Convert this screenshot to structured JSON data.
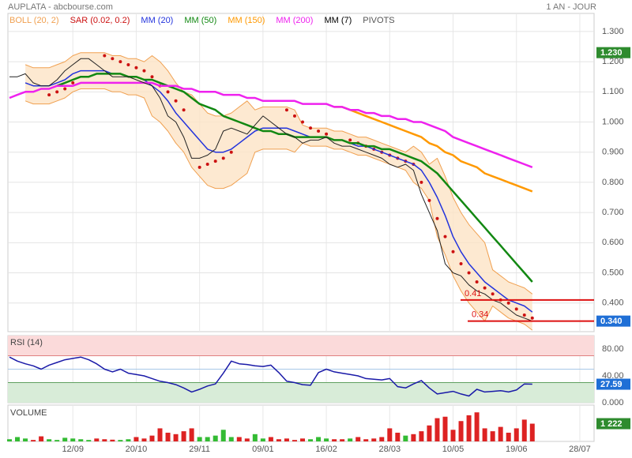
{
  "title": "AUPLATA - abcbourse.com",
  "period": "1 AN - JOUR",
  "chart_data": [
    {
      "type": "line",
      "categories": [
        null,
        null,
        null,
        null,
        null,
        null,
        null,
        null,
        "12/09",
        null,
        null,
        null,
        null,
        null,
        null,
        null,
        "20/10",
        null,
        null,
        null,
        null,
        null,
        null,
        null,
        "29/11",
        null,
        null,
        null,
        null,
        null,
        null,
        null,
        "09/01",
        null,
        null,
        null,
        null,
        null,
        null,
        null,
        "16/02",
        null,
        null,
        null,
        null,
        null,
        null,
        null,
        "28/03",
        null,
        null,
        null,
        null,
        null,
        null,
        null,
        "10/05",
        null,
        null,
        null,
        null,
        null,
        null,
        null,
        "19/06",
        null,
        null,
        null,
        null,
        null,
        null,
        null,
        "28/07",
        null
      ],
      "ylim": [
        0.305,
        1.36
      ],
      "yticks": [
        {
          "value": 1.3,
          "label": "1.300"
        },
        {
          "value": 1.2,
          "label": "1.200"
        },
        {
          "value": 1.1,
          "label": "1.100"
        },
        {
          "value": 1.0,
          "label": "1.000"
        },
        {
          "value": 0.9,
          "label": "0.900"
        },
        {
          "value": 0.8,
          "label": "0.800"
        },
        {
          "value": 0.7,
          "label": "0.700"
        },
        {
          "value": 0.6,
          "label": "0.600"
        },
        {
          "value": 0.5,
          "label": "0.500"
        },
        {
          "value": 0.4,
          "label": "0.400"
        }
      ],
      "grid": true,
      "series": [
        {
          "name": "BOLL (20, 2)",
          "style": "band",
          "color": "#f0a050",
          "fill": "#fde3c6",
          "upper": [
            null,
            null,
            1.19,
            1.18,
            1.18,
            1.18,
            1.19,
            1.2,
            1.22,
            1.23,
            1.23,
            1.23,
            1.23,
            1.22,
            1.22,
            1.21,
            1.21,
            1.2,
            1.22,
            1.2,
            1.17,
            1.13,
            1.1,
            1.09,
            1.06,
            1.03,
            1.02,
            1.02,
            1.03,
            1.05,
            1.07,
            1.04,
            1.05,
            1.05,
            1.05,
            1.05,
            1.04,
            0.99,
            0.98,
            0.98,
            0.98,
            0.97,
            0.97,
            0.96,
            0.95,
            0.95,
            0.94,
            0.93,
            0.92,
            0.91,
            0.9,
            0.92,
            0.9,
            0.86,
            0.88,
            0.82,
            0.75,
            0.7,
            0.66,
            0.63,
            0.6,
            0.51,
            0.49,
            0.47,
            0.46,
            0.45,
            0.43,
            null,
            null,
            null,
            null,
            null,
            null,
            null
          ],
          "lower": [
            null,
            null,
            1.07,
            1.06,
            1.06,
            1.06,
            1.07,
            1.08,
            1.1,
            1.11,
            1.11,
            1.11,
            1.11,
            1.1,
            1.1,
            1.09,
            1.09,
            1.08,
            1.02,
            1.0,
            0.97,
            0.93,
            0.9,
            0.85,
            0.82,
            0.79,
            0.78,
            0.78,
            0.79,
            0.81,
            0.83,
            0.9,
            0.91,
            0.91,
            0.91,
            0.91,
            0.9,
            0.93,
            0.92,
            0.92,
            0.92,
            0.91,
            0.91,
            0.9,
            0.89,
            0.89,
            0.88,
            0.87,
            0.86,
            0.85,
            0.84,
            0.8,
            0.78,
            0.74,
            0.62,
            0.56,
            0.49,
            0.44,
            0.4,
            0.37,
            0.34,
            0.39,
            0.37,
            0.35,
            0.34,
            0.33,
            0.31,
            null,
            null,
            null,
            null,
            null,
            null,
            null
          ]
        },
        {
          "name": "SAR (0.02, 0.2)",
          "style": "dots",
          "color": "#cc1111",
          "values": [
            null,
            null,
            null,
            null,
            null,
            1.09,
            1.1,
            1.11,
            1.13,
            null,
            null,
            null,
            1.22,
            1.21,
            1.2,
            1.19,
            1.18,
            1.17,
            1.15,
            1.12,
            1.1,
            1.07,
            1.04,
            null,
            0.85,
            0.86,
            0.87,
            0.88,
            0.9,
            null,
            null,
            null,
            null,
            null,
            null,
            1.04,
            1.02,
            1.0,
            0.98,
            0.97,
            0.96,
            null,
            null,
            0.94,
            0.93,
            0.92,
            0.91,
            0.9,
            0.89,
            0.88,
            0.87,
            0.86,
            0.8,
            0.74,
            0.68,
            0.62,
            0.57,
            0.53,
            0.5,
            0.47,
            0.45,
            0.43,
            0.41,
            0.4,
            0.38,
            0.36,
            0.35,
            null,
            null,
            null,
            null,
            null,
            null,
            null
          ]
        },
        {
          "name": "MM (20)",
          "style": "line",
          "width": 1.5,
          "color": "#2233dd",
          "values": [
            null,
            null,
            1.13,
            1.12,
            1.12,
            1.12,
            1.13,
            1.14,
            1.16,
            1.17,
            1.17,
            1.17,
            1.17,
            1.16,
            1.16,
            1.15,
            1.15,
            1.14,
            1.12,
            1.1,
            1.07,
            1.03,
            1.0,
            0.97,
            0.94,
            0.91,
            0.9,
            0.9,
            0.91,
            0.93,
            0.95,
            0.97,
            0.98,
            0.98,
            0.98,
            0.98,
            0.97,
            0.96,
            0.95,
            0.95,
            0.95,
            0.94,
            0.94,
            0.93,
            0.92,
            0.92,
            0.91,
            0.9,
            0.89,
            0.88,
            0.87,
            0.86,
            0.84,
            0.8,
            0.75,
            0.69,
            0.62,
            0.57,
            0.53,
            0.5,
            0.47,
            0.45,
            0.43,
            0.41,
            0.4,
            0.39,
            0.37,
            null,
            null,
            null,
            null,
            null,
            null,
            null
          ]
        },
        {
          "name": "MM (50)",
          "style": "line",
          "width": 2.5,
          "color": "#128812",
          "values": [
            null,
            null,
            null,
            null,
            null,
            null,
            1.12,
            1.13,
            1.14,
            1.15,
            1.15,
            1.16,
            1.16,
            1.16,
            1.16,
            1.15,
            1.15,
            1.14,
            1.14,
            1.13,
            1.12,
            1.11,
            1.1,
            1.08,
            1.06,
            1.05,
            1.04,
            1.02,
            1.01,
            1.0,
            0.99,
            0.98,
            0.97,
            0.97,
            0.96,
            0.96,
            0.95,
            0.95,
            0.95,
            0.95,
            0.95,
            0.94,
            0.94,
            0.93,
            0.93,
            0.92,
            0.92,
            0.91,
            0.91,
            0.9,
            0.89,
            0.88,
            0.87,
            0.85,
            0.83,
            0.8,
            0.77,
            0.74,
            0.71,
            0.68,
            0.65,
            0.62,
            0.59,
            0.56,
            0.53,
            0.5,
            0.47,
            null,
            null,
            null,
            null,
            null,
            null,
            null
          ]
        },
        {
          "name": "MM (150)",
          "style": "line",
          "width": 2.5,
          "color": "#ff9900",
          "values": [
            null,
            null,
            null,
            null,
            null,
            null,
            null,
            null,
            null,
            null,
            null,
            null,
            null,
            null,
            null,
            null,
            null,
            null,
            null,
            null,
            null,
            null,
            null,
            null,
            null,
            null,
            null,
            null,
            null,
            null,
            null,
            null,
            null,
            null,
            null,
            null,
            null,
            null,
            null,
            null,
            null,
            1.05,
            1.05,
            1.04,
            1.03,
            1.02,
            1.01,
            1.0,
            0.99,
            0.98,
            0.97,
            0.96,
            0.95,
            0.93,
            0.92,
            0.9,
            0.89,
            0.87,
            0.86,
            0.85,
            0.83,
            0.82,
            0.81,
            0.8,
            0.79,
            0.78,
            0.77,
            null,
            null,
            null,
            null,
            null,
            null,
            null
          ]
        },
        {
          "name": "MM (200)",
          "style": "line",
          "width": 2.5,
          "color": "#ee22ee",
          "values": [
            1.08,
            1.09,
            1.1,
            1.1,
            1.11,
            1.11,
            1.12,
            1.12,
            1.12,
            1.13,
            1.13,
            1.13,
            1.13,
            1.13,
            1.13,
            1.13,
            1.13,
            1.13,
            1.13,
            1.12,
            1.12,
            1.12,
            1.11,
            1.11,
            1.1,
            1.1,
            1.1,
            1.09,
            1.09,
            1.09,
            1.08,
            1.08,
            1.07,
            1.07,
            1.07,
            1.07,
            1.07,
            1.06,
            1.06,
            1.06,
            1.06,
            1.05,
            1.05,
            1.04,
            1.04,
            1.03,
            1.03,
            1.02,
            1.02,
            1.01,
            1.01,
            1.0,
            1.0,
            0.99,
            0.98,
            0.97,
            0.95,
            0.94,
            0.93,
            0.92,
            0.91,
            0.9,
            0.89,
            0.88,
            0.87,
            0.86,
            0.85,
            null,
            null,
            null,
            null,
            null,
            null,
            null
          ]
        },
        {
          "name": "MM (7)",
          "style": "line",
          "width": 1,
          "color": "#222222",
          "values": [
            1.15,
            1.15,
            1.16,
            1.13,
            1.12,
            1.12,
            1.14,
            1.17,
            1.19,
            1.21,
            1.21,
            1.19,
            1.17,
            1.15,
            1.15,
            1.15,
            1.14,
            1.13,
            1.12,
            1.08,
            1.02,
            1.0,
            0.95,
            0.88,
            0.88,
            0.89,
            0.91,
            0.97,
            0.98,
            0.97,
            0.96,
            0.99,
            1.02,
            1.0,
            0.98,
            0.96,
            0.95,
            0.93,
            0.94,
            0.94,
            0.95,
            0.93,
            0.92,
            0.92,
            0.91,
            0.9,
            0.89,
            0.88,
            0.86,
            0.85,
            0.86,
            0.84,
            0.76,
            0.7,
            0.64,
            0.53,
            0.5,
            0.49,
            0.46,
            0.44,
            0.43,
            0.41,
            0.4,
            0.38,
            0.36,
            0.35,
            0.34,
            null,
            null,
            null,
            null,
            null,
            null,
            null
          ]
        }
      ],
      "pivots": {
        "name": "PIVOTS",
        "color": "#dd1111",
        "values": [
          0.41,
          0.34
        ]
      },
      "markers": [
        {
          "value": 1.23,
          "label": "1.230",
          "color": "#2e8b2e"
        },
        {
          "value": 0.34,
          "label": "0.340",
          "color": "#1f6fd6"
        }
      ]
    },
    {
      "type": "line",
      "ylim": [
        0,
        100
      ],
      "yticks": [
        {
          "value": 80,
          "label": "80.00"
        },
        {
          "value": 40,
          "label": "40.00"
        },
        {
          "value": 0,
          "label": "0.000"
        }
      ],
      "reference_lines": [
        70,
        50,
        30
      ],
      "series": [
        {
          "name": "RSI (14)",
          "style": "line",
          "width": 1.5,
          "color": "#1a1aa8",
          "values": [
            68,
            62,
            58,
            55,
            50,
            56,
            60,
            64,
            66,
            68,
            64,
            58,
            50,
            46,
            50,
            44,
            42,
            40,
            36,
            32,
            30,
            27,
            22,
            16,
            20,
            25,
            28,
            44,
            62,
            58,
            57,
            55,
            54,
            56,
            45,
            32,
            30,
            27,
            26,
            45,
            50,
            46,
            44,
            42,
            40,
            36,
            35,
            34,
            36,
            24,
            22,
            28,
            33,
            22,
            13,
            15,
            17,
            13,
            10,
            20,
            16,
            17,
            18,
            16,
            19,
            28,
            27.59,
            null,
            null,
            null,
            null,
            null,
            null,
            null
          ]
        }
      ],
      "markers": [
        {
          "value": 27.59,
          "color": "#1f6fd6"
        }
      ]
    },
    {
      "type": "bar",
      "title": "VOLUME",
      "ylim": [
        0,
        2500
      ],
      "values": [
        150,
        300,
        200,
        100,
        350,
        150,
        100,
        250,
        200,
        150,
        100,
        200,
        150,
        120,
        100,
        150,
        300,
        200,
        400,
        900,
        600,
        500,
        700,
        900,
        300,
        300,
        400,
        800,
        300,
        300,
        200,
        500,
        200,
        300,
        150,
        200,
        100,
        200,
        150,
        300,
        200,
        150,
        150,
        200,
        300,
        150,
        200,
        300,
        900,
        600,
        400,
        500,
        700,
        1100,
        1600,
        1700,
        800,
        1400,
        1800,
        2000,
        900,
        700,
        1000,
        600,
        900,
        1500,
        1222,
        null,
        null,
        null,
        null,
        null,
        null,
        null
      ],
      "up_color": "#33bb33",
      "down_color": "#dd2222",
      "markers": [
        {
          "value": 1222,
          "label": "1 222",
          "color": "#2e8b2e"
        }
      ]
    }
  ]
}
